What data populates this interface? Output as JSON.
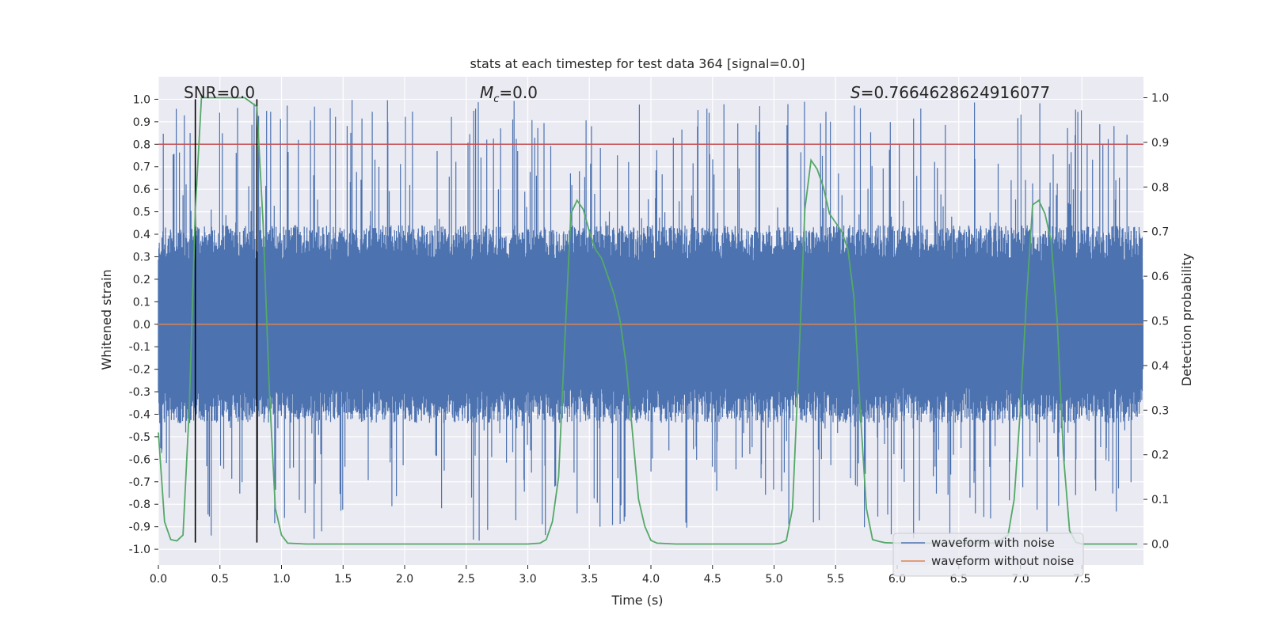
{
  "chart_data": {
    "type": "line",
    "title": "stats at each timestep for test data 364 [signal=0.0]",
    "xlabel": "Time (s)",
    "ylabel": "Whitened strain",
    "ylabel_right": "Detection probability",
    "xlim": [
      0.0,
      8.0
    ],
    "ylim": [
      -1.07,
      1.1
    ],
    "ylim_right": [
      -0.047,
      1.047
    ],
    "x_ticks": [
      "0.0",
      "0.5",
      "1.0",
      "1.5",
      "2.0",
      "2.5",
      "3.0",
      "3.5",
      "4.0",
      "4.5",
      "5.0",
      "5.5",
      "6.0",
      "6.5",
      "7.0",
      "7.5"
    ],
    "y_ticks": [
      "1.0",
      "0.9",
      "0.8",
      "0.7",
      "0.6",
      "0.5",
      "0.4",
      "0.3",
      "0.2",
      "0.1",
      "0.0",
      "-0.1",
      "-0.2",
      "-0.3",
      "-0.4",
      "-0.5",
      "-0.6",
      "-0.7",
      "-0.8",
      "-0.9",
      "-1.0"
    ],
    "y_ticks_right": [
      "1.0",
      "0.9",
      "0.8",
      "0.7",
      "0.6",
      "0.5",
      "0.4",
      "0.3",
      "0.2",
      "0.1",
      "0.0"
    ],
    "annotations": {
      "snr": "SNR=0.0",
      "mc_symbol": "M",
      "mc_subscript": "c",
      "mc_value": "=0.0",
      "s_symbol": "S",
      "s_value": "=0.7664628624916077"
    },
    "threshold": {
      "value": 0.8,
      "color": "#c44e52"
    },
    "markers_vertical": [
      0.3,
      0.8
    ],
    "series": [
      {
        "name": "waveform with noise",
        "color": "#4c72b0",
        "description": "noisy whitened strain, roughly uniform amplitude ~0.4 with spikes up to ~1.0 across 0-8 s"
      },
      {
        "name": "waveform without noise",
        "color": "#dd8452",
        "values_constant": 0.0
      },
      {
        "name": "detection probability",
        "color": "#55a868",
        "axis": "right",
        "x": [
          0.0,
          0.05,
          0.1,
          0.15,
          0.2,
          0.25,
          0.3,
          0.35,
          0.4,
          0.5,
          0.6,
          0.7,
          0.75,
          0.8,
          0.85,
          0.9,
          0.95,
          1.0,
          1.05,
          1.2,
          1.5,
          2.0,
          2.5,
          3.0,
          3.1,
          3.15,
          3.2,
          3.25,
          3.3,
          3.35,
          3.4,
          3.45,
          3.5,
          3.55,
          3.6,
          3.65,
          3.7,
          3.75,
          3.8,
          3.85,
          3.9,
          3.95,
          4.0,
          4.05,
          4.2,
          4.5,
          5.0,
          5.05,
          5.1,
          5.15,
          5.2,
          5.25,
          5.3,
          5.35,
          5.4,
          5.45,
          5.5,
          5.55,
          5.6,
          5.65,
          5.7,
          5.75,
          5.8,
          5.85,
          5.9,
          6.0,
          6.5,
          6.8,
          6.9,
          6.95,
          7.0,
          7.05,
          7.1,
          7.15,
          7.2,
          7.25,
          7.3,
          7.35,
          7.4,
          7.45,
          7.5,
          7.6,
          7.8,
          7.95
        ],
        "values": [
          0.25,
          0.05,
          0.01,
          0.007,
          0.02,
          0.3,
          0.75,
          1.0,
          1.0,
          1.0,
          1.0,
          1.0,
          0.99,
          0.98,
          0.72,
          0.35,
          0.08,
          0.02,
          0.002,
          0.0,
          0.0,
          0.0,
          0.0,
          0.0,
          0.002,
          0.01,
          0.05,
          0.15,
          0.45,
          0.74,
          0.77,
          0.75,
          0.7,
          0.66,
          0.64,
          0.6,
          0.56,
          0.5,
          0.4,
          0.25,
          0.1,
          0.04,
          0.008,
          0.002,
          0.0,
          0.0,
          0.0,
          0.002,
          0.008,
          0.08,
          0.4,
          0.75,
          0.86,
          0.84,
          0.8,
          0.74,
          0.72,
          0.7,
          0.66,
          0.55,
          0.3,
          0.08,
          0.01,
          0.006,
          0.003,
          0.002,
          0.002,
          0.002,
          0.02,
          0.1,
          0.3,
          0.55,
          0.76,
          0.77,
          0.74,
          0.68,
          0.5,
          0.2,
          0.03,
          0.004,
          0.0,
          0.0,
          0.0,
          0.0
        ]
      }
    ],
    "legend": {
      "placement": "lower-right",
      "entries": [
        {
          "label": "waveform with noise",
          "color": "#4c72b0"
        },
        {
          "label": "waveform without noise",
          "color": "#dd8452"
        }
      ]
    }
  }
}
